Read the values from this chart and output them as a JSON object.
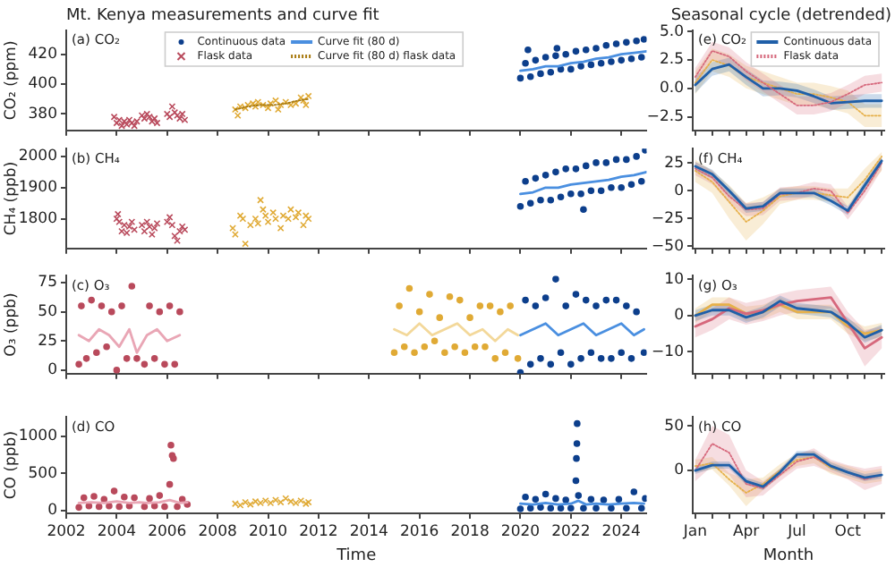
{
  "chart_data": [
    {
      "type": "scatter",
      "title": "Mt. Kenya measurements and curve fit",
      "ylabel": "CO₂ (ppm)",
      "annotations": [
        "(a) CO₂"
      ],
      "xlim": [
        2002,
        2025
      ],
      "xticks": [
        2002,
        2004,
        2006,
        2008,
        2010,
        2012,
        2014,
        2016,
        2018,
        2020,
        2022,
        2024
      ],
      "ylim": [
        369,
        436
      ],
      "yticks": [
        380,
        400,
        420
      ],
      "tick_labels": "y",
      "legend": "top",
      "series": [
        {
          "name": "Continuous data",
          "marker": "circle",
          "color": "#0d3f8c",
          "x": [
            2020.0,
            2020.2,
            2020.3,
            2020.4,
            2020.6,
            2020.8,
            2021.0,
            2021.2,
            2021.4,
            2021.45,
            2021.6,
            2021.8,
            2022.0,
            2022.2,
            2022.4,
            2022.6,
            2022.8,
            2023.0,
            2023.2,
            2023.4,
            2023.6,
            2023.8,
            2024.0,
            2024.2,
            2024.4,
            2024.6,
            2024.8,
            2024.9
          ],
          "values": [
            404,
            414,
            423,
            405,
            416,
            407,
            418,
            408,
            419,
            424,
            410,
            420,
            410,
            422,
            412,
            423,
            413,
            424,
            414,
            426,
            415,
            427,
            416,
            428,
            417,
            429,
            418,
            430
          ]
        },
        {
          "name": "Flask data",
          "marker": "cross",
          "color": "#b94a5c",
          "x": [
            2003.9,
            2004.0,
            2004.1,
            2004.2,
            2004.3,
            2004.4,
            2004.5,
            2004.6,
            2004.7,
            2004.8,
            2005.0,
            2005.1,
            2005.2,
            2005.3,
            2005.4,
            2005.5,
            2005.6,
            2006.0,
            2006.1,
            2006.2,
            2006.3,
            2006.4,
            2006.5,
            2006.6,
            2006.7
          ],
          "values": [
            378,
            374,
            376,
            372,
            375,
            373,
            376,
            374,
            372,
            375,
            379,
            377,
            380,
            378,
            375,
            377,
            374,
            380,
            378,
            385,
            381,
            379,
            377,
            380,
            376
          ]
        },
        {
          "name": "Curve fit (80 d)",
          "type": "line",
          "marker": "none",
          "line_style": "solid",
          "color": "#4a8fe0",
          "x": [
            2020,
            2020.5,
            2021,
            2021.5,
            2022,
            2022.5,
            2023,
            2023.5,
            2024,
            2024.5,
            2025
          ],
          "values": [
            409,
            410,
            412,
            412,
            414,
            415,
            417,
            418,
            420,
            421,
            422
          ]
        },
        {
          "marker": "cross",
          "color": "#e0aa35",
          "x": [
            2008.7,
            2008.8,
            2008.9,
            2009.1,
            2009.2,
            2009.4,
            2009.5,
            2009.6,
            2009.8,
            2010.0,
            2010.1,
            2010.3,
            2010.4,
            2010.5,
            2010.7,
            2010.9,
            2011.1,
            2011.3,
            2011.4,
            2011.5,
            2011.6
          ],
          "values": [
            383,
            379,
            385,
            384,
            386,
            387,
            385,
            388,
            386,
            384,
            387,
            389,
            383,
            386,
            388,
            386,
            387,
            391,
            389,
            386,
            392
          ]
        },
        {
          "name": "Curve fit (80 d) flask data",
          "type": "line",
          "marker": "none",
          "line_style": "dotted",
          "color": "#a87a10",
          "x": [
            2008.7,
            2009.2,
            2009.7,
            2010.2,
            2010.7,
            2011.2,
            2011.6
          ],
          "values": [
            383,
            385,
            386,
            386,
            387,
            389,
            390
          ]
        }
      ]
    },
    {
      "type": "scatter",
      "ylabel": "CH₄ (ppb)",
      "annotations": [
        "(b) CH₄"
      ],
      "xlim": [
        2002,
        2025
      ],
      "xticks": [
        2002,
        2004,
        2006,
        2008,
        2010,
        2012,
        2014,
        2016,
        2018,
        2020,
        2022,
        2024
      ],
      "ylim": [
        1705,
        2025
      ],
      "yticks": [
        1800,
        1900,
        2000
      ],
      "tick_labels": "y",
      "series": [
        {
          "marker": "cross",
          "color": "#b94a5c",
          "x": [
            2004.0,
            2004.05,
            2004.1,
            2004.2,
            2004.3,
            2004.4,
            2004.5,
            2004.6,
            2004.7,
            2005.0,
            2005.1,
            2005.2,
            2005.3,
            2005.4,
            2005.5,
            2005.6,
            2006.0,
            2006.1,
            2006.2,
            2006.3,
            2006.4,
            2006.5,
            2006.6,
            2006.7
          ],
          "values": [
            1800,
            1815,
            1790,
            1760,
            1780,
            1755,
            1775,
            1790,
            1765,
            1780,
            1760,
            1790,
            1775,
            1750,
            1770,
            1785,
            1790,
            1805,
            1780,
            1745,
            1730,
            1760,
            1775,
            1765
          ]
        },
        {
          "marker": "cross",
          "color": "#e0aa35",
          "x": [
            2008.6,
            2008.7,
            2008.9,
            2009.0,
            2009.1,
            2009.3,
            2009.5,
            2009.6,
            2009.7,
            2009.8,
            2009.9,
            2010.0,
            2010.2,
            2010.3,
            2010.5,
            2010.6,
            2010.8,
            2010.9,
            2011.1,
            2011.2,
            2011.4,
            2011.5,
            2011.6
          ],
          "values": [
            1770,
            1750,
            1810,
            1800,
            1720,
            1780,
            1800,
            1785,
            1860,
            1830,
            1810,
            1790,
            1820,
            1800,
            1770,
            1810,
            1800,
            1830,
            1805,
            1820,
            1780,
            1810,
            1800
          ]
        },
        {
          "marker": "circle",
          "color": "#0d3f8c",
          "x": [
            2020.0,
            2020.2,
            2020.4,
            2020.6,
            2020.8,
            2021.0,
            2021.2,
            2021.4,
            2021.6,
            2021.8,
            2022.0,
            2022.2,
            2022.4,
            2022.5,
            2022.6,
            2022.8,
            2023.0,
            2023.2,
            2023.4,
            2023.6,
            2023.8,
            2024.0,
            2024.2,
            2024.4,
            2024.6,
            2024.8,
            2024.95
          ],
          "values": [
            1840,
            1920,
            1850,
            1930,
            1860,
            1940,
            1860,
            1950,
            1870,
            1960,
            1880,
            1960,
            1880,
            1830,
            1970,
            1890,
            1980,
            1890,
            1980,
            1900,
            1990,
            1900,
            1990,
            1910,
            2000,
            1920,
            2020
          ]
        },
        {
          "type": "line",
          "marker": "none",
          "line_style": "solid",
          "color": "#4a8fe0",
          "x": [
            2020,
            2020.5,
            2021,
            2021.5,
            2022,
            2022.5,
            2023,
            2023.5,
            2024,
            2024.5,
            2025
          ],
          "values": [
            1880,
            1885,
            1900,
            1900,
            1910,
            1915,
            1920,
            1925,
            1935,
            1940,
            1950
          ]
        }
      ]
    },
    {
      "type": "scatter",
      "ylabel": "O₃ (ppb)",
      "annotations": [
        "(c) O₃"
      ],
      "xlim": [
        2002,
        2025
      ],
      "xticks": [
        2002,
        2004,
        2006,
        2008,
        2010,
        2012,
        2014,
        2016,
        2018,
        2020,
        2022,
        2024
      ],
      "ylim": [
        -3,
        81
      ],
      "yticks": [
        0,
        25,
        50,
        75
      ],
      "tick_labels": "y",
      "series": [
        {
          "marker": "circle",
          "color": "#b94a5c",
          "x": [
            2002.5,
            2002.6,
            2002.8,
            2003.0,
            2003.2,
            2003.4,
            2003.6,
            2003.8,
            2004.0,
            2004.2,
            2004.4,
            2004.6,
            2004.8,
            2005.1,
            2005.3,
            2005.5,
            2005.7,
            2005.9,
            2006.1,
            2006.3,
            2006.5
          ],
          "values": [
            5,
            55,
            10,
            60,
            15,
            55,
            20,
            50,
            0,
            55,
            10,
            72,
            10,
            5,
            55,
            10,
            50,
            5,
            55,
            5,
            50
          ]
        },
        {
          "type": "line",
          "marker": "none",
          "line_style": "solid",
          "color": "#e9a6b5",
          "x": [
            2002.5,
            2002.9,
            2003.3,
            2003.7,
            2004.1,
            2004.5,
            2004.8,
            2005.2,
            2005.6,
            2006.0,
            2006.5
          ],
          "values": [
            30,
            25,
            35,
            30,
            20,
            35,
            15,
            30,
            35,
            25,
            30
          ]
        },
        {
          "marker": "circle",
          "color": "#e0aa35",
          "x": [
            2015.0,
            2015.2,
            2015.4,
            2015.6,
            2015.8,
            2016.0,
            2016.2,
            2016.4,
            2016.6,
            2016.8,
            2017.0,
            2017.2,
            2017.4,
            2017.6,
            2017.8,
            2018.0,
            2018.2,
            2018.4,
            2018.6,
            2018.8,
            2019.0,
            2019.2,
            2019.4,
            2019.6,
            2019.9
          ],
          "values": [
            15,
            55,
            20,
            70,
            15,
            50,
            20,
            65,
            25,
            45,
            15,
            63,
            20,
            60,
            15,
            45,
            20,
            55,
            20,
            55,
            10,
            50,
            15,
            55,
            10
          ]
        },
        {
          "type": "line",
          "marker": "none",
          "line_style": "solid",
          "color": "#f3d89a",
          "x": [
            2015,
            2015.5,
            2016,
            2016.5,
            2017,
            2017.5,
            2018,
            2018.5,
            2019,
            2019.5,
            2019.9
          ],
          "values": [
            35,
            30,
            40,
            30,
            35,
            40,
            30,
            35,
            25,
            35,
            30
          ]
        },
        {
          "marker": "circle",
          "color": "#0d3f8c",
          "x": [
            2020.0,
            2020.2,
            2020.4,
            2020.6,
            2020.8,
            2021.0,
            2021.2,
            2021.4,
            2021.6,
            2021.8,
            2022.0,
            2022.2,
            2022.4,
            2022.6,
            2022.8,
            2023.0,
            2023.2,
            2023.4,
            2023.6,
            2023.8,
            2024.0,
            2024.2,
            2024.4,
            2024.6,
            2024.9
          ],
          "values": [
            -2,
            60,
            5,
            55,
            10,
            62,
            5,
            78,
            15,
            55,
            5,
            65,
            10,
            60,
            15,
            55,
            10,
            60,
            10,
            60,
            15,
            55,
            10,
            50,
            15
          ]
        },
        {
          "type": "line",
          "marker": "none",
          "line_style": "solid",
          "color": "#4a8fe0",
          "x": [
            2020,
            2020.5,
            2021,
            2021.5,
            2022,
            2022.5,
            2023,
            2023.5,
            2024,
            2024.5,
            2024.9
          ],
          "values": [
            30,
            35,
            40,
            30,
            35,
            40,
            30,
            35,
            40,
            30,
            35
          ]
        }
      ]
    },
    {
      "type": "scatter",
      "xlabel": "Time",
      "ylabel": "CO (ppb)",
      "annotations": [
        "(d) CO"
      ],
      "xlim": [
        2002,
        2025
      ],
      "xticks": [
        2002,
        2004,
        2006,
        2008,
        2010,
        2012,
        2014,
        2016,
        2018,
        2020,
        2022,
        2024
      ],
      "ylim": [
        -40,
        1260
      ],
      "yticks": [
        0,
        500,
        1000
      ],
      "series": [
        {
          "marker": "circle",
          "color": "#b94a5c",
          "x": [
            2002.5,
            2002.7,
            2002.9,
            2003.1,
            2003.3,
            2003.5,
            2003.7,
            2003.9,
            2004.1,
            2004.3,
            2004.5,
            2004.7,
            2005.1,
            2005.3,
            2005.5,
            2005.7,
            2005.9,
            2006.1,
            2006.15,
            2006.2,
            2006.25,
            2006.4,
            2006.6,
            2006.8
          ],
          "values": [
            40,
            170,
            60,
            190,
            50,
            150,
            60,
            260,
            50,
            180,
            60,
            170,
            50,
            160,
            60,
            200,
            50,
            350,
            880,
            740,
            700,
            50,
            150,
            80
          ]
        },
        {
          "type": "line",
          "marker": "none",
          "line_style": "solid",
          "color": "#e9a6b5",
          "x": [
            2002.5,
            2003,
            2003.5,
            2004,
            2004.5,
            2004.9,
            2005.2,
            2005.7,
            2006.1,
            2006.5,
            2006.8
          ],
          "values": [
            100,
            110,
            100,
            120,
            100,
            110,
            100,
            110,
            140,
            100,
            110
          ]
        },
        {
          "marker": "cross",
          "color": "#e0aa35",
          "x": [
            2008.7,
            2008.9,
            2009.1,
            2009.3,
            2009.5,
            2009.7,
            2009.9,
            2010.1,
            2010.3,
            2010.5,
            2010.7,
            2010.9,
            2011.1,
            2011.3,
            2011.5,
            2011.6
          ],
          "values": [
            90,
            70,
            110,
            80,
            120,
            100,
            130,
            100,
            140,
            110,
            160,
            120,
            100,
            130,
            90,
            110
          ]
        },
        {
          "marker": "circle",
          "color": "#0d3f8c",
          "x": [
            2020.0,
            2020.2,
            2020.4,
            2020.6,
            2020.8,
            2021.0,
            2021.2,
            2021.4,
            2021.6,
            2021.8,
            2022.0,
            2022.2,
            2022.22,
            2022.24,
            2022.25,
            2022.3,
            2022.5,
            2022.8,
            2023.0,
            2023.3,
            2023.6,
            2023.9,
            2024.2,
            2024.5,
            2024.8,
            2024.95
          ],
          "values": [
            20,
            180,
            30,
            150,
            40,
            220,
            30,
            160,
            30,
            140,
            30,
            400,
            700,
            900,
            1170,
            200,
            30,
            150,
            30,
            140,
            30,
            150,
            30,
            250,
            30,
            160
          ]
        },
        {
          "type": "line",
          "marker": "none",
          "line_style": "solid",
          "color": "#4a8fe0",
          "x": [
            2020,
            2020.5,
            2021,
            2021.5,
            2022,
            2022.3,
            2022.6,
            2023,
            2023.5,
            2024,
            2024.5,
            2024.9
          ],
          "values": [
            90,
            80,
            100,
            80,
            90,
            130,
            80,
            90,
            80,
            90,
            100,
            90
          ]
        }
      ]
    },
    {
      "type": "line",
      "title": "Seasonal cycle (detrended)",
      "annotations": [
        "(e) CO₂"
      ],
      "categories": [
        null,
        null,
        null,
        null,
        null,
        null,
        null,
        null,
        null,
        null,
        null,
        null
      ],
      "ylim": [
        -3.7,
        5.1
      ],
      "yticks": [
        {
          "value": -2.5,
          "label": "−2.5"
        },
        {
          "value": 0,
          "label": "0.0"
        },
        {
          "value": 2.5,
          "label": "2.5"
        },
        {
          "value": 5,
          "label": "5.0"
        }
      ],
      "tick_labels": "y",
      "legend": "top right",
      "marker": "none",
      "series": [
        {
          "line_style": "dotted",
          "color": "#e6b04a",
          "values": [
            0.5,
            2.5,
            2.0,
            1.0,
            0.5,
            0,
            -0.5,
            -0.5,
            -0.8,
            -1.2,
            -2.4,
            -2.4
          ],
          "lower": [
            -0.5,
            1.5,
            1.0,
            0,
            -0.5,
            -1.0,
            -1.5,
            -1.5,
            -1.8,
            -2.2,
            -3.4,
            -3.4
          ],
          "upper": [
            1.5,
            3.5,
            3.0,
            2.0,
            1.5,
            1.0,
            0.5,
            0.5,
            0.2,
            -0.2,
            -1.4,
            -1.4
          ]
        },
        {
          "name": "Continuous data",
          "line_style": "solid",
          "color": "#1f5fa8",
          "values": [
            0.3,
            1.7,
            2.1,
            1.0,
            0,
            0,
            -0.2,
            -0.7,
            -1.3,
            -1.2,
            -1.1,
            -1.1
          ],
          "lower": [
            -0.4,
            1.1,
            1.5,
            0.3,
            -0.7,
            -0.6,
            -0.8,
            -1.3,
            -1.9,
            -1.8,
            -1.7,
            -1.7
          ],
          "upper": [
            1.0,
            2.3,
            2.7,
            1.7,
            0.7,
            0.6,
            0.4,
            -0.1,
            -0.7,
            -0.6,
            -0.5,
            -0.5
          ]
        },
        {
          "name": "Flask data",
          "line_style": "dotted",
          "color": "#d6687c",
          "values": [
            1.0,
            3.3,
            2.8,
            1.5,
            0.5,
            -0.5,
            -1.5,
            -1.5,
            -1.2,
            -0.5,
            0.3,
            0.5
          ],
          "lower": [
            0.2,
            2.5,
            2.0,
            0.7,
            -0.3,
            -1.3,
            -2.3,
            -2.3,
            -2.0,
            -1.3,
            -0.5,
            -0.3
          ],
          "upper": [
            1.8,
            4.1,
            3.6,
            2.3,
            1.3,
            0.3,
            -0.7,
            -0.7,
            -0.4,
            0.3,
            1.1,
            1.3
          ]
        }
      ]
    },
    {
      "type": "line",
      "annotations": [
        "(f) CH₄"
      ],
      "categories": [
        null,
        null,
        null,
        null,
        null,
        null,
        null,
        null,
        null,
        null,
        null,
        null
      ],
      "ylim": [
        -52,
        38
      ],
      "yticks": [
        {
          "value": -50,
          "label": "−50"
        },
        {
          "value": -25,
          "label": "−25"
        },
        0,
        25
      ],
      "tick_labels": "y",
      "marker": "none",
      "series": [
        {
          "line_style": "dotted",
          "color": "#e6b04a",
          "values": [
            18,
            8,
            -10,
            -28,
            -18,
            -5,
            -2,
            -2,
            -4,
            -6,
            10,
            31
          ],
          "lower": [
            8,
            -2,
            -25,
            -45,
            -30,
            -12,
            -8,
            -8,
            -10,
            -14,
            0,
            18
          ],
          "upper": [
            28,
            18,
            5,
            -11,
            -6,
            2,
            4,
            4,
            2,
            2,
            20,
            35
          ]
        },
        {
          "line_style": "dotted",
          "color": "#d6687c",
          "values": [
            20,
            12,
            -5,
            -17,
            -16,
            -3,
            -2,
            2,
            0,
            -20,
            0,
            25
          ],
          "lower": [
            14,
            6,
            -11,
            -23,
            -22,
            -9,
            -8,
            -4,
            -6,
            -26,
            -6,
            19
          ],
          "upper": [
            26,
            18,
            1,
            -11,
            -10,
            3,
            4,
            8,
            6,
            -14,
            6,
            31
          ]
        },
        {
          "line_style": "solid",
          "color": "#1f5fa8",
          "values": [
            22,
            15,
            0,
            -16,
            -14,
            -2,
            -2,
            -2,
            -9,
            -18,
            5,
            27
          ],
          "lower": [
            18,
            11,
            -4,
            -20,
            -18,
            -6,
            -6,
            -6,
            -13,
            -22,
            1,
            23
          ],
          "upper": [
            26,
            19,
            4,
            -12,
            -10,
            2,
            2,
            2,
            -5,
            -14,
            9,
            31
          ]
        }
      ]
    },
    {
      "type": "line",
      "annotations": [
        "(g) O₃"
      ],
      "categories": [
        null,
        null,
        null,
        null,
        null,
        null,
        null,
        null,
        null,
        null,
        null,
        null
      ],
      "ylim": [
        -16,
        11
      ],
      "yticks": [
        {
          "value": -10,
          "label": "−10"
        },
        0,
        10
      ],
      "tick_labels": "y",
      "marker": "none",
      "series": [
        {
          "line_style": "solid",
          "color": "#e6b04a",
          "values": [
            0,
            3,
            3,
            0.5,
            1,
            3,
            1,
            1,
            1,
            -3,
            -5,
            -4
          ],
          "lower": [
            -2,
            1,
            1,
            -1.5,
            -1,
            1,
            -1,
            -1,
            -1,
            -5,
            -7,
            -6
          ],
          "upper": [
            2,
            5,
            5,
            2.5,
            3,
            5,
            3,
            3,
            3,
            -1,
            -3,
            -2
          ]
        },
        {
          "line_style": "solid",
          "color": "#d6687c",
          "values": [
            -3,
            -1,
            2,
            0.5,
            1.5,
            3,
            4,
            4.5,
            5,
            -2,
            -9,
            -6
          ],
          "lower": [
            -6,
            -4,
            -1,
            -2.5,
            -1.5,
            0,
            1,
            1.5,
            2,
            -5,
            -14,
            -9
          ],
          "upper": [
            0,
            2,
            5,
            3.5,
            4.5,
            6,
            7,
            7.5,
            8,
            1,
            -4,
            -3
          ]
        },
        {
          "line_style": "solid",
          "color": "#1f5fa8",
          "values": [
            0,
            1.5,
            1.5,
            -0.5,
            1,
            4,
            2,
            1.5,
            1,
            -2,
            -6,
            -4
          ],
          "lower": [
            -1.5,
            0,
            0,
            -2,
            -0.5,
            2.5,
            0.5,
            0,
            -0.5,
            -3.5,
            -7.5,
            -5.5
          ],
          "upper": [
            1.5,
            3,
            3,
            1,
            2.5,
            5.5,
            3.5,
            3,
            2.5,
            -0.5,
            -4.5,
            -2.5
          ]
        }
      ]
    },
    {
      "type": "line",
      "xlabel": "Month",
      "annotations": [
        "(h) CO"
      ],
      "categories": [
        "Jan",
        null,
        null,
        "Apr",
        null,
        null,
        "Jul",
        null,
        null,
        "Oct",
        null,
        null
      ],
      "ylim": [
        -48,
        60
      ],
      "yticks": [
        0,
        50
      ],
      "marker": "none",
      "series": [
        {
          "line_style": "dotted",
          "color": "#e6b04a",
          "values": [
            5,
            8,
            -10,
            -25,
            -15,
            0,
            12,
            15,
            3,
            -2,
            -8,
            -5
          ],
          "lower": [
            -2,
            1,
            -17,
            -40,
            -22,
            -7,
            5,
            8,
            -4,
            -9,
            -15,
            -12
          ],
          "upper": [
            12,
            15,
            -3,
            -10,
            -8,
            7,
            19,
            22,
            10,
            5,
            -1,
            2
          ]
        },
        {
          "line_style": "dotted",
          "color": "#d6687c",
          "values": [
            0,
            30,
            20,
            -15,
            -20,
            -5,
            10,
            15,
            5,
            -2,
            -10,
            -5
          ],
          "lower": [
            -12,
            5,
            -5,
            -30,
            -28,
            -12,
            2,
            5,
            -2,
            -10,
            -22,
            -15
          ],
          "upper": [
            12,
            50,
            40,
            0,
            -12,
            2,
            18,
            25,
            12,
            6,
            2,
            5
          ]
        },
        {
          "line_style": "solid",
          "color": "#1f5fa8",
          "values": [
            0,
            6,
            6,
            -12,
            -18,
            -2,
            18,
            18,
            5,
            -2,
            -8,
            -5
          ],
          "lower": [
            -4,
            2,
            2,
            -16,
            -22,
            -6,
            14,
            14,
            1,
            -6,
            -12,
            -9
          ],
          "upper": [
            4,
            10,
            10,
            -8,
            -14,
            2,
            22,
            22,
            9,
            2,
            -4,
            -1
          ]
        }
      ]
    }
  ]
}
